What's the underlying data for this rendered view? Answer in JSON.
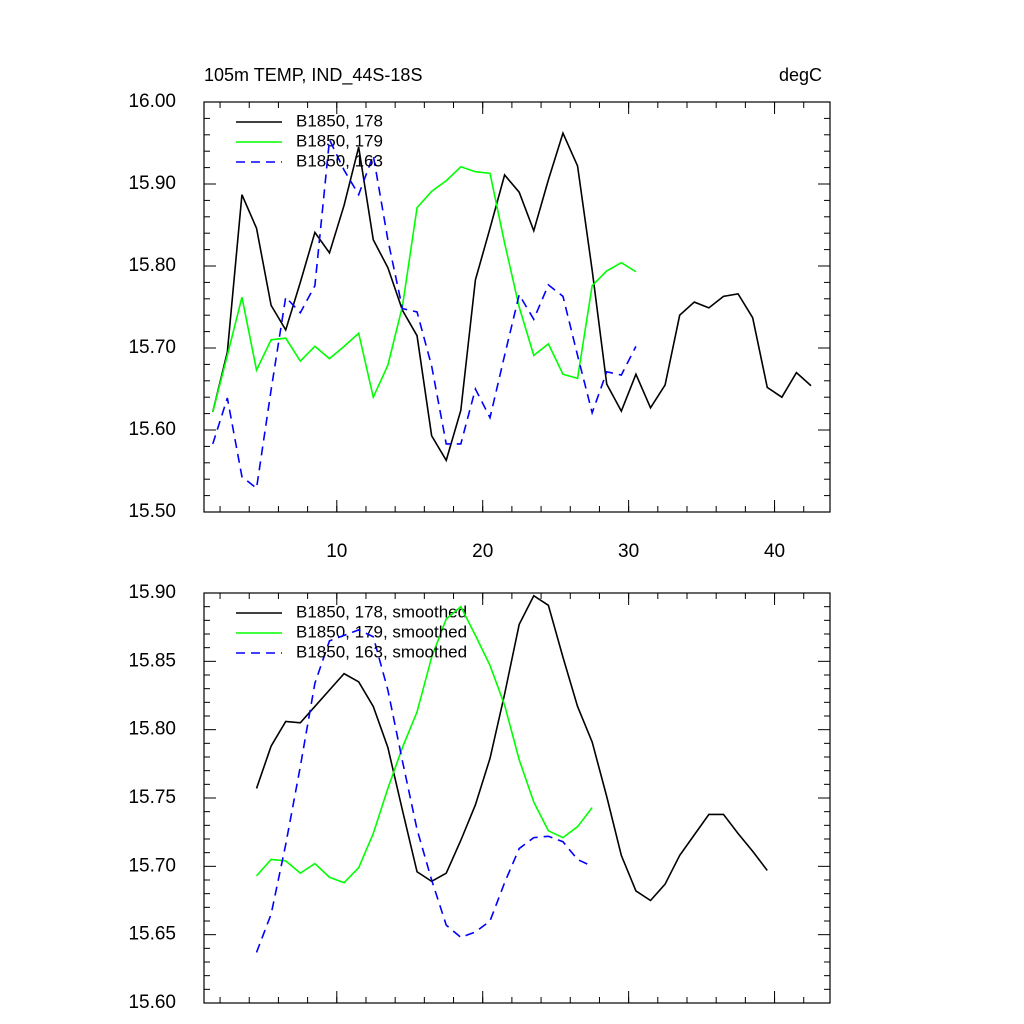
{
  "chart_data": [
    {
      "type": "line",
      "title": "105m TEMP, IND_44S-18S",
      "units": "degC",
      "xlim": [
        0.9,
        43.8
      ],
      "xticks": [
        10,
        20,
        30,
        40
      ],
      "ylim": [
        15.5,
        16.0
      ],
      "yticks": [
        {
          "value": 15.5,
          "label": "15.50"
        },
        {
          "value": 15.6,
          "label": "15.60"
        },
        {
          "value": 15.7,
          "label": "15.70"
        },
        {
          "value": 15.8,
          "label": "15.80"
        },
        {
          "value": 15.9,
          "label": "15.90"
        },
        {
          "value": 16.0,
          "label": "16.00"
        }
      ],
      "legend": "upper left",
      "series": [
        {
          "name": "B1850, 178",
          "color": "#000000",
          "dash": false,
          "x": [
            1.5,
            2.5,
            3.5,
            4.5,
            5.5,
            6.5,
            7.5,
            8.5,
            9.5,
            10.5,
            11.5,
            12.5,
            13.5,
            14.5,
            15.5,
            16.5,
            17.5,
            18.5,
            19.5,
            20.5,
            21.5,
            22.5,
            23.5,
            24.5,
            25.5,
            26.5,
            27.5,
            28.5,
            29.5,
            30.5,
            31.5,
            32.5,
            33.5,
            34.5,
            35.5,
            36.5,
            37.5,
            38.5,
            39.5,
            40.5,
            41.5,
            42.5
          ],
          "values": [
            15.622,
            15.695,
            15.887,
            15.846,
            15.752,
            15.722,
            15.78,
            15.841,
            15.816,
            15.874,
            15.945,
            15.832,
            15.798,
            15.746,
            15.715,
            15.593,
            15.563,
            15.624,
            15.783,
            15.846,
            15.911,
            15.89,
            15.843,
            15.905,
            15.962,
            15.922,
            15.795,
            15.656,
            15.623,
            15.668,
            15.627,
            15.655,
            15.74,
            15.756,
            15.749,
            15.763,
            15.766,
            15.737,
            15.652,
            15.64,
            15.67,
            15.654
          ]
        },
        {
          "name": "B1850, 179",
          "color": "#00ff00",
          "dash": false,
          "x": [
            1.5,
            2.5,
            3.5,
            4.5,
            5.5,
            6.5,
            7.5,
            8.5,
            9.5,
            10.5,
            11.5,
            12.5,
            13.5,
            14.5,
            15.5,
            16.5,
            17.5,
            18.5,
            19.5,
            20.5,
            21.5,
            22.5,
            23.5,
            24.5,
            25.5,
            26.5,
            27.5,
            28.5,
            29.5,
            30.5
          ],
          "values": [
            15.622,
            15.691,
            15.762,
            15.673,
            15.71,
            15.712,
            15.684,
            15.702,
            15.687,
            15.702,
            15.718,
            15.64,
            15.679,
            15.751,
            15.871,
            15.891,
            15.904,
            15.921,
            15.915,
            15.913,
            15.828,
            15.75,
            15.691,
            15.705,
            15.668,
            15.663,
            15.776,
            15.794,
            15.804,
            15.793
          ]
        },
        {
          "name": "B1850, 163",
          "color": "#0000ff",
          "dash": true,
          "x": [
            1.5,
            2.5,
            3.5,
            4.5,
            5.5,
            6.5,
            7.5,
            8.5,
            9.5,
            10.5,
            11.5,
            12.5,
            13.5,
            14.5,
            15.5,
            16.5,
            17.5,
            18.5,
            19.5,
            20.5,
            21.5,
            22.5,
            23.5,
            24.5,
            25.5,
            26.5,
            27.5,
            28.5,
            29.5,
            30.5
          ],
          "values": [
            15.583,
            15.639,
            15.543,
            15.529,
            15.649,
            15.762,
            15.743,
            15.776,
            15.954,
            15.917,
            15.887,
            15.935,
            15.832,
            15.748,
            15.744,
            15.678,
            15.583,
            15.583,
            15.65,
            15.615,
            15.691,
            15.765,
            15.735,
            15.777,
            15.763,
            15.691,
            15.621,
            15.671,
            15.667,
            15.702
          ]
        }
      ]
    },
    {
      "type": "line",
      "xlim": [
        0.9,
        43.8
      ],
      "xticks": [
        10,
        20,
        30,
        40
      ],
      "ylim": [
        15.6,
        15.9
      ],
      "yticks": [
        {
          "value": 15.6,
          "label": "15.60"
        },
        {
          "value": 15.65,
          "label": "15.65"
        },
        {
          "value": 15.7,
          "label": "15.70"
        },
        {
          "value": 15.75,
          "label": "15.75"
        },
        {
          "value": 15.8,
          "label": "15.80"
        },
        {
          "value": 15.85,
          "label": "15.85"
        },
        {
          "value": 15.9,
          "label": "15.90"
        }
      ],
      "legend": "upper left",
      "series": [
        {
          "name": "B1850, 178, smoothed",
          "color": "#000000",
          "dash": false,
          "x": [
            4.5,
            5.5,
            6.5,
            7.5,
            8.5,
            9.5,
            10.5,
            11.5,
            12.5,
            13.5,
            14.5,
            15.5,
            16.5,
            17.5,
            18.5,
            19.5,
            20.5,
            21.5,
            22.5,
            23.5,
            24.5,
            25.5,
            26.5,
            27.5,
            28.5,
            29.5,
            30.5,
            31.5,
            32.5,
            33.5,
            34.5,
            35.5,
            36.5,
            37.5,
            38.5,
            39.5
          ],
          "values": [
            15.757,
            15.788,
            15.806,
            15.805,
            15.817,
            15.829,
            15.841,
            15.835,
            15.817,
            15.787,
            15.741,
            15.696,
            15.689,
            15.695,
            15.719,
            15.745,
            15.779,
            15.826,
            15.877,
            15.898,
            15.891,
            15.853,
            15.817,
            15.791,
            15.751,
            15.708,
            15.682,
            15.675,
            15.687,
            15.708,
            15.723,
            15.738,
            15.738,
            15.724,
            15.711,
            15.697
          ]
        },
        {
          "name": "B1850, 179, smoothed",
          "color": "#00ff00",
          "dash": false,
          "x": [
            4.5,
            5.5,
            6.5,
            7.5,
            8.5,
            9.5,
            10.5,
            11.5,
            12.5,
            13.5,
            14.5,
            15.5,
            16.5,
            17.5,
            18.5,
            19.5,
            20.5,
            21.5,
            22.5,
            23.5,
            24.5,
            25.5,
            26.5,
            27.5
          ],
          "values": [
            15.693,
            15.705,
            15.704,
            15.695,
            15.702,
            15.692,
            15.688,
            15.699,
            15.724,
            15.757,
            15.787,
            15.813,
            15.853,
            15.881,
            15.89,
            15.869,
            15.847,
            15.818,
            15.778,
            15.747,
            15.726,
            15.721,
            15.729,
            15.743
          ]
        },
        {
          "name": "B1850, 163, smoothed",
          "color": "#0000ff",
          "dash": true,
          "x": [
            4.5,
            5.5,
            6.5,
            7.5,
            8.5,
            9.5,
            10.5,
            11.5,
            12.5,
            13.5,
            14.5,
            15.5,
            16.5,
            17.5,
            18.5,
            19.5,
            20.5,
            21.5,
            22.5,
            23.5,
            24.5,
            25.5,
            26.5,
            27.5
          ],
          "values": [
            15.637,
            15.665,
            15.716,
            15.773,
            15.834,
            15.865,
            15.869,
            15.873,
            15.868,
            15.829,
            15.777,
            15.727,
            15.69,
            15.657,
            15.648,
            15.652,
            15.66,
            15.688,
            15.713,
            15.721,
            15.722,
            15.718,
            15.705,
            15.7
          ]
        }
      ]
    }
  ]
}
